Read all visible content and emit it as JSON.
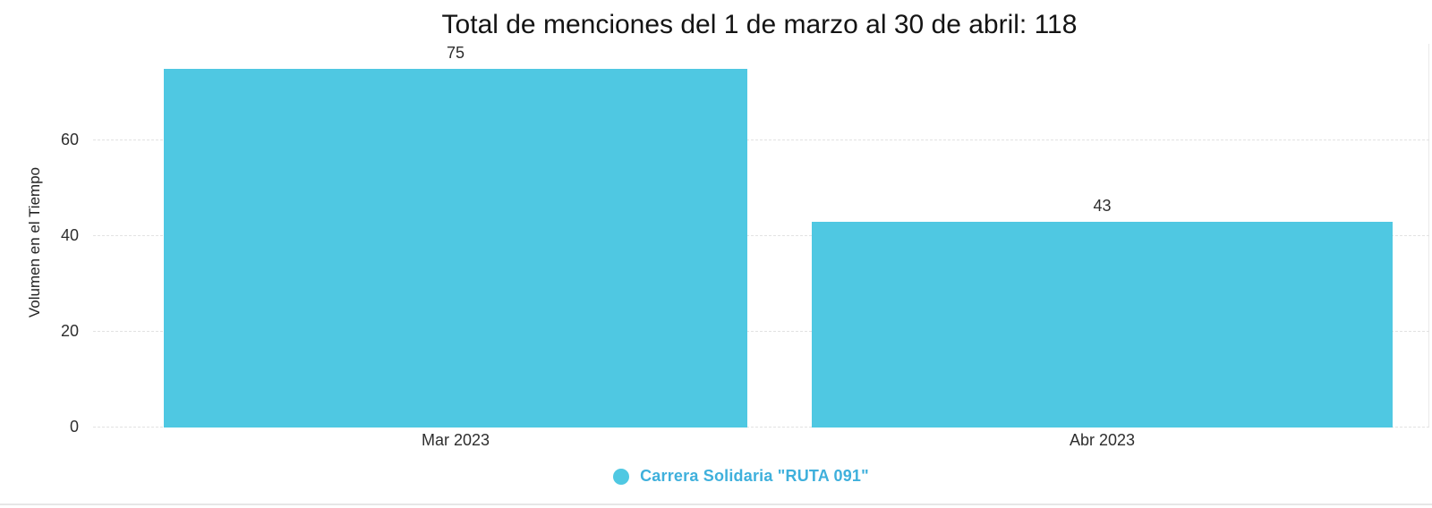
{
  "chart_data": {
    "type": "bar",
    "title": "Total de menciones del 1 de marzo al 30 de abril: 118",
    "xlabel": "",
    "ylabel": "Volumen en el Tiempo",
    "categories": [
      "Mar 2023",
      "Abr 2023"
    ],
    "series": [
      {
        "name": "Carrera Solidaria \"RUTA 091\"",
        "values": [
          75,
          43
        ]
      }
    ],
    "total_mentions": 118,
    "yticks": [
      0,
      20,
      40,
      60
    ],
    "ylim": [
      0,
      75
    ],
    "grid": true,
    "gridline_style": "dashed",
    "legend_position": "bottom-center",
    "colors": {
      "bar": "#4FC8E2",
      "legend_dot": "#4FC8E2",
      "legend_text": "#3FB0DC",
      "title_text": "#141414",
      "axis_text": "#2E2E2E",
      "gridline": "#E2E2E2",
      "divider": "#E6E6E6"
    }
  },
  "legend": {
    "label": "Carrera Solidaria \"RUTA 091\""
  }
}
